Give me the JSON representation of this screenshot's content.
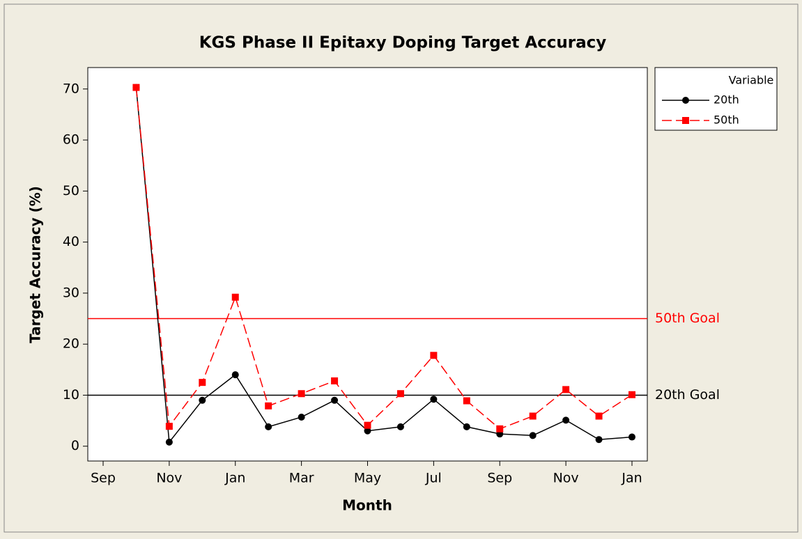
{
  "chart_data": {
    "type": "line",
    "title": "KGS Phase II Epitaxy Doping Target Accuracy",
    "x_label": "Month",
    "y_label": "Target Accuracy (%)",
    "categories": [
      "Sep",
      null,
      "Nov",
      null,
      "Jan",
      null,
      "Mar",
      null,
      "May",
      null,
      "Jul",
      null,
      "Sep",
      null,
      "Nov",
      null,
      "Jan"
    ],
    "series": [
      {
        "name": "20th",
        "color": "#000000",
        "marker": "circle",
        "dash": false,
        "values": [
          null,
          70.3,
          0.8,
          9,
          14,
          3.8,
          5.7,
          9,
          3,
          3.8,
          9.2,
          3.8,
          2.4,
          2.1,
          5.1,
          1.3,
          1.8
        ]
      },
      {
        "name": "50th",
        "color": "#ff0000",
        "marker": "square",
        "dash": true,
        "values": [
          null,
          70.3,
          3.9,
          12.5,
          29.2,
          7.9,
          10.3,
          12.8,
          4.1,
          10.3,
          17.8,
          8.9,
          3.4,
          5.9,
          11.1,
          5.9,
          10.1
        ]
      }
    ],
    "reference_lines": [
      {
        "value": 25,
        "label": "50th Goal",
        "color": "#ff0000"
      },
      {
        "value": 10,
        "label": "20th Goal",
        "color": "#000000"
      }
    ],
    "ylim": [
      -2.9,
      74.2
    ],
    "yticks": [
      0,
      10,
      20,
      30,
      40,
      50,
      60,
      70
    ],
    "legend_title": "Variable",
    "legend": "right"
  }
}
